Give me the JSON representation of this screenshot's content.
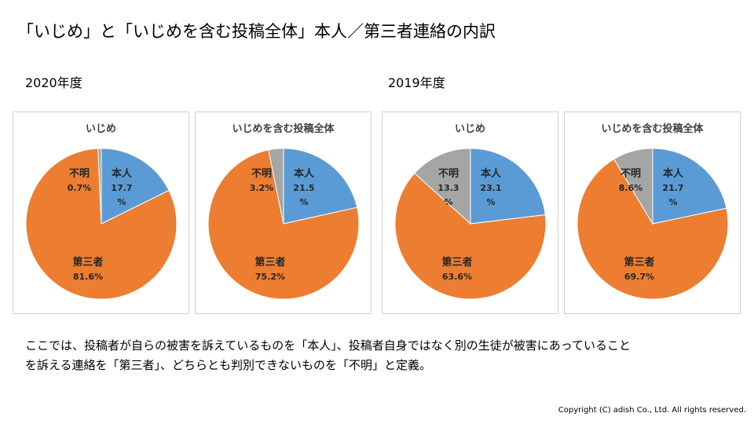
{
  "title": "「いじめ」と「いじめを含む投稿全体」本人／第三者連絡の内訳",
  "years": [
    "2020年度",
    "2019年度"
  ],
  "colors": {
    "self": "#5b9bd5",
    "third": "#ed7d31",
    "unknown": "#a5a5a5"
  },
  "chart_data": [
    {
      "type": "pie",
      "title": "いじめ",
      "slices": [
        {
          "key": "self",
          "label": "本人",
          "value": 17.7,
          "value_text": "17.7",
          "unit_text": "%"
        },
        {
          "key": "third",
          "label": "第三者",
          "value": 81.6,
          "value_text": "81.6%",
          "unit_text": ""
        },
        {
          "key": "unknown",
          "label": "不明",
          "value": 0.7,
          "value_text": "0.7%",
          "unit_text": ""
        }
      ]
    },
    {
      "type": "pie",
      "title": "いじめを含む投稿全体",
      "slices": [
        {
          "key": "self",
          "label": "本人",
          "value": 21.5,
          "value_text": "21.5",
          "unit_text": "%"
        },
        {
          "key": "third",
          "label": "第三者",
          "value": 75.2,
          "value_text": "75.2%",
          "unit_text": ""
        },
        {
          "key": "unknown",
          "label": "不明",
          "value": 3.2,
          "value_text": "3.2%",
          "unit_text": ""
        }
      ]
    },
    {
      "type": "pie",
      "title": "いじめ",
      "slices": [
        {
          "key": "self",
          "label": "本人",
          "value": 23.1,
          "value_text": "23.1",
          "unit_text": "%"
        },
        {
          "key": "third",
          "label": "第三者",
          "value": 63.6,
          "value_text": "63.6%",
          "unit_text": ""
        },
        {
          "key": "unknown",
          "label": "不明",
          "value": 13.3,
          "value_text": "13.3",
          "unit_text": "%"
        }
      ]
    },
    {
      "type": "pie",
      "title": "いじめを含む投稿全体",
      "slices": [
        {
          "key": "self",
          "label": "本人",
          "value": 21.7,
          "value_text": "21.7",
          "unit_text": "%"
        },
        {
          "key": "third",
          "label": "第三者",
          "value": 69.7,
          "value_text": "69.7%",
          "unit_text": ""
        },
        {
          "key": "unknown",
          "label": "不明",
          "value": 8.6,
          "value_text": "8.6%",
          "unit_text": ""
        }
      ]
    }
  ],
  "note": [
    "ここでは、投稿者が自らの被害を訴えているものを「本人」、投稿者自身ではなく別の生徒が被害にあっていること",
    "を訴える連絡を「第三者」、どちらとも判別できないものを「不明」と定義。"
  ],
  "copyright": "Copyright (C) adish Co., Ltd. All rights reserved."
}
